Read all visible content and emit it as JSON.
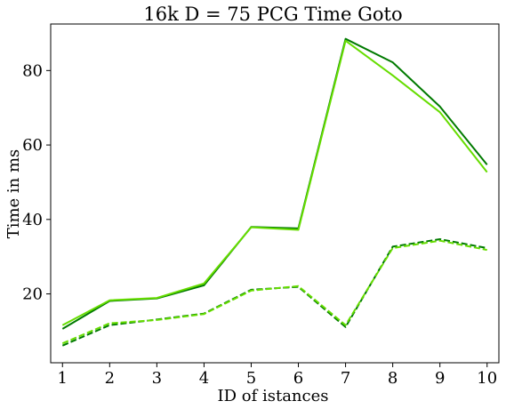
{
  "chart_data": {
    "type": "line",
    "title": "16k    D = 75    PCG Time    Goto",
    "xlabel": "ID of istances",
    "ylabel": "Time in ms",
    "x": [
      1,
      2,
      3,
      4,
      5,
      6,
      7,
      8,
      9,
      10
    ],
    "x_ticks": [
      "1",
      "2",
      "3",
      "4",
      "5",
      "6",
      "7",
      "8",
      "9",
      "10"
    ],
    "xlim": [
      0.75,
      10.25
    ],
    "ylim": [
      1.5,
      92.5
    ],
    "y_ticks": [
      20,
      40,
      60,
      80
    ],
    "grid": false,
    "legend": "none",
    "series": [
      {
        "values": [
          10.6,
          18.1,
          18.8,
          22.3,
          38.0,
          37.6,
          88.5,
          82.2,
          70.3,
          54.7
        ],
        "color": "#007a00",
        "style": "solid"
      },
      {
        "values": [
          11.6,
          18.3,
          18.9,
          22.8,
          37.9,
          37.2,
          88.0,
          78.7,
          68.8,
          52.7
        ],
        "color": "#66dd00",
        "style": "solid"
      },
      {
        "values": [
          6.1,
          11.6,
          13.1,
          14.7,
          21.1,
          21.9,
          11.1,
          32.7,
          34.7,
          32.3
        ],
        "color": "#007a00",
        "style": "dashed"
      },
      {
        "values": [
          6.7,
          12.1,
          13.0,
          14.6,
          20.9,
          22.1,
          11.6,
          32.3,
          34.3,
          31.8
        ],
        "color": "#66dd00",
        "style": "dashed"
      }
    ]
  }
}
